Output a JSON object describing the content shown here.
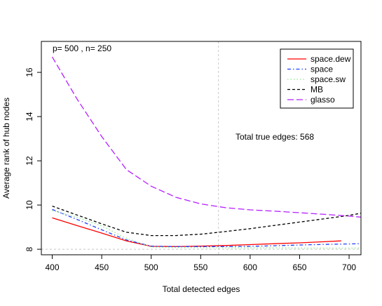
{
  "chart_data": {
    "type": "line",
    "title": "",
    "xlabel": "Total detected edges",
    "ylabel": "Average rank of hub nodes",
    "xlim": [
      389,
      712
    ],
    "ylim": [
      7.75,
      17.4
    ],
    "xticks": [
      400,
      450,
      500,
      550,
      600,
      650,
      700
    ],
    "yticks": [
      8,
      10,
      12,
      14,
      16
    ],
    "grid": false,
    "legend_position": "top-right",
    "annotations": {
      "params": "p= 500 , n= 250",
      "true_edges": "Total true edges: 568"
    },
    "reference_lines": {
      "vertical_x": 568,
      "horizontal_y": 8
    },
    "series": [
      {
        "name": "space.dew",
        "color": "#ff0000",
        "dash": "solid",
        "x": [
          400,
          425,
          450,
          475,
          500,
          525,
          550,
          575,
          600,
          625,
          650,
          675,
          692
        ],
        "y": [
          9.42,
          9.07,
          8.73,
          8.38,
          8.13,
          8.12,
          8.14,
          8.17,
          8.21,
          8.25,
          8.29,
          8.34,
          8.38
        ]
      },
      {
        "name": "space",
        "color": "#1f3fff",
        "dash": "dashdot",
        "x": [
          400,
          425,
          450,
          475,
          500,
          525,
          550,
          575,
          600,
          625,
          650,
          675,
          700,
          712
        ],
        "y": [
          9.8,
          9.35,
          8.88,
          8.42,
          8.14,
          8.12,
          8.12,
          8.12,
          8.13,
          8.16,
          8.19,
          8.22,
          8.24,
          8.25
        ]
      },
      {
        "name": "space.sw",
        "color": "#8ee88e",
        "dash": "dotted",
        "x": [
          400,
          425,
          450,
          475,
          500,
          525,
          550,
          575,
          600,
          625,
          650,
          675,
          700,
          712
        ],
        "y": [
          9.75,
          9.45,
          9.05,
          8.5,
          8.1,
          8.08,
          8.07,
          8.06,
          8.06,
          8.06,
          8.05,
          8.05,
          8.05,
          8.05
        ]
      },
      {
        "name": "MB",
        "color": "#000000",
        "dash": "dashed",
        "x": [
          400,
          425,
          450,
          475,
          500,
          525,
          550,
          575,
          600,
          625,
          650,
          675,
          700,
          712
        ],
        "y": [
          9.95,
          9.55,
          9.15,
          8.77,
          8.62,
          8.62,
          8.68,
          8.8,
          8.93,
          9.08,
          9.23,
          9.38,
          9.53,
          9.63
        ]
      },
      {
        "name": "glasso",
        "color": "#b51eff",
        "dash": "longdash",
        "x": [
          400,
          425,
          450,
          475,
          500,
          525,
          550,
          575,
          600,
          625,
          650,
          675,
          700,
          712
        ],
        "y": [
          16.7,
          14.8,
          13.1,
          11.6,
          10.85,
          10.35,
          10.05,
          9.88,
          9.78,
          9.72,
          9.65,
          9.58,
          9.5,
          9.45
        ]
      }
    ]
  }
}
